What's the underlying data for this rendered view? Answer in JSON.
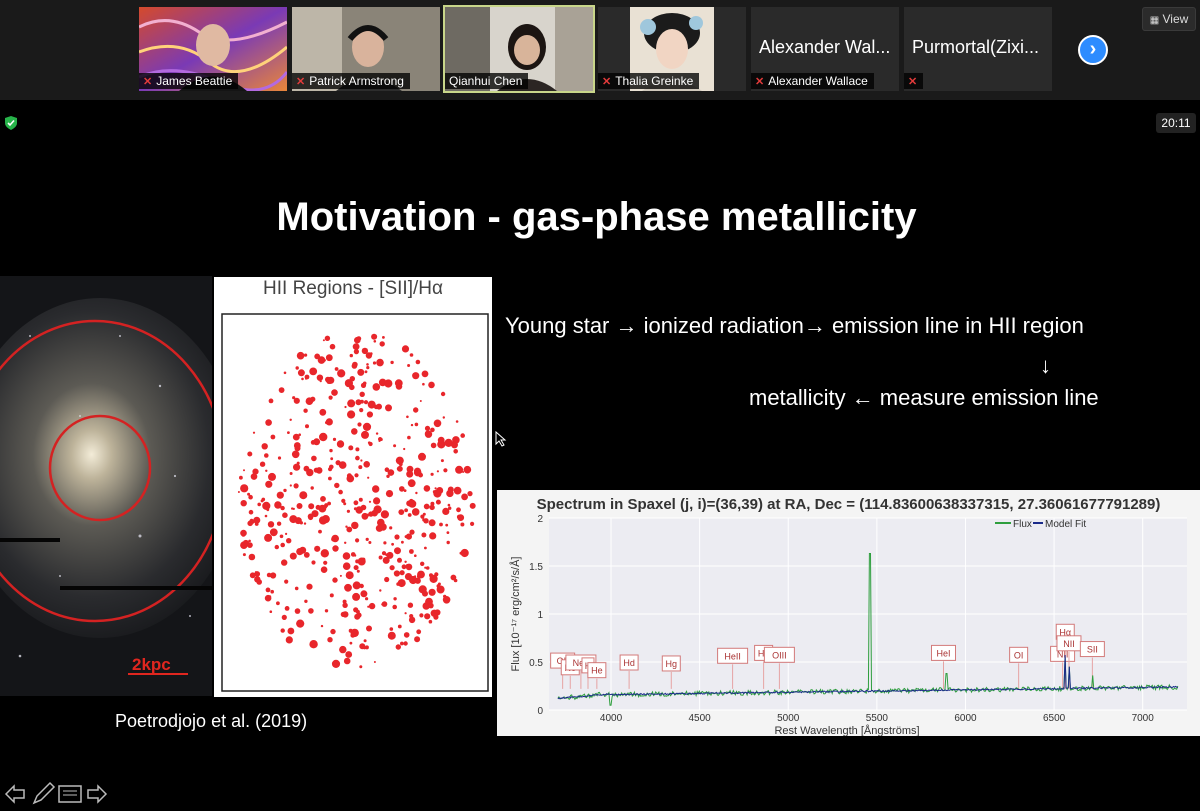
{
  "participants": [
    {
      "name": "James Beattie",
      "mic": "muted"
    },
    {
      "name": "Patrick Armstrong",
      "mic": "muted"
    },
    {
      "name": "Qianhui Chen",
      "mic": "on"
    },
    {
      "name": "Thalia Greinke",
      "mic": "muted"
    },
    {
      "name": "Alexander Wallace",
      "display": "Alexander Wal...",
      "mic": "muted"
    },
    {
      "name": "",
      "display": "Purmortal(Zixi...",
      "mic": "muted"
    }
  ],
  "view_button": "View",
  "timer": "20:11",
  "slide": {
    "title": "Motivation - gas-phase metallicity",
    "line1": "Young star → ionized  radiation→ emission line in HII region",
    "arrow_down": "↓",
    "line2": "metallicity ← measure emission line",
    "scale_label": "2kpc",
    "hii_panel_title": "HII Regions - [SII]/Hα",
    "caption": "Poetrodjojo et al. (2019)"
  },
  "spectrum": {
    "title": "Spectrum in Spaxel (j, i)=(36,39) at RA, Dec = (114.83600638337315, 27.36061677791289)",
    "legend": [
      "Flux",
      "Model Fit"
    ],
    "xlabel": "Rest Wavelength [Ångströms]",
    "ylabel": "Flux [10⁻¹⁷ erg/cm²/s/Å]",
    "xticks": [
      "4000",
      "4500",
      "5000",
      "5500",
      "6000",
      "6500",
      "7000"
    ],
    "yticks": [
      "0",
      "0.5",
      "1",
      "1.5",
      "2"
    ],
    "line_labels": [
      "OII",
      "Ne",
      "NeII",
      "H",
      "He",
      "Hd",
      "Hg",
      "HeII",
      "Hb",
      "OIII",
      "HeI",
      "OI",
      "NII",
      "Hα",
      "NII",
      "SII"
    ]
  },
  "colors": {
    "active_border": "#c8d68a",
    "accent": "#2d8cff",
    "mute": "#e23b3b",
    "flux": "#2e9e3e",
    "model": "#1a2a8a",
    "hii_marks": "#e8262b"
  }
}
